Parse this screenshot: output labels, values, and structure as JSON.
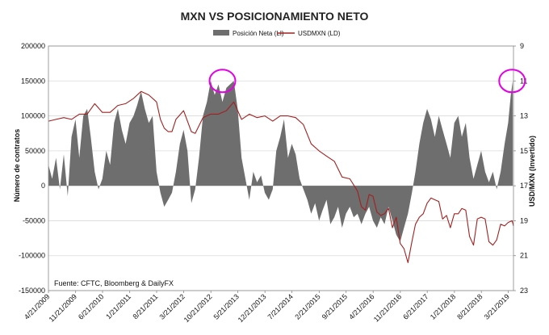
{
  "chart_data": {
    "type": "area",
    "title": "MXN VS POSICIONAMIENTO NETO",
    "source": "Fuente: CFTC, Bloomberg & DailyFX",
    "y_left": {
      "label": "Número de contratos",
      "range": [
        -150000,
        200000
      ],
      "ticks": [
        "200000",
        "150000",
        "100000",
        "50000",
        "0",
        "-50000",
        "-100000",
        "-150000"
      ]
    },
    "y_right": {
      "label": "USD/MXN (Invertido)",
      "range": [
        9,
        23
      ],
      "inverted": true,
      "ticks": [
        "9",
        "11",
        "13",
        "15",
        "17",
        "19",
        "21",
        "23"
      ]
    },
    "x_range": [
      "2009-04-21",
      "2019-05-01"
    ],
    "x_ticks": [
      {
        "date": "2009-04-21",
        "label": "4/21/2009"
      },
      {
        "date": "2009-11-21",
        "label": "11/21/2009"
      },
      {
        "date": "2010-06-21",
        "label": "6/21/2010"
      },
      {
        "date": "2011-01-21",
        "label": "1/21/2011"
      },
      {
        "date": "2011-08-21",
        "label": "8/21/2011"
      },
      {
        "date": "2012-03-21",
        "label": "3/21/2012"
      },
      {
        "date": "2012-10-21",
        "label": "10/21/2012"
      },
      {
        "date": "2013-05-21",
        "label": "5/21/2013"
      },
      {
        "date": "2013-12-21",
        "label": "12/21/2013"
      },
      {
        "date": "2014-07-21",
        "label": "7/21/2014"
      },
      {
        "date": "2015-02-21",
        "label": "2/21/2015"
      },
      {
        "date": "2015-09-21",
        "label": "9/21/2015"
      },
      {
        "date": "2016-04-21",
        "label": "4/21/2016"
      },
      {
        "date": "2016-11-21",
        "label": "11/21/2016"
      },
      {
        "date": "2017-06-21",
        "label": "6/21/2017"
      },
      {
        "date": "2018-01-21",
        "label": "1/21/2018"
      },
      {
        "date": "2018-08-21",
        "label": "8/21/2018"
      },
      {
        "date": "2019-03-21",
        "label": "3/21/2019"
      }
    ],
    "legend_position": "top-center",
    "grid": true,
    "series": [
      {
        "name": "Posición Neta (LI)",
        "kind": "area",
        "axis": "left",
        "color": "#6e6e6e",
        "points": [
          [
            "2009-04-21",
            30000
          ],
          [
            "2009-05-20",
            10000
          ],
          [
            "2009-06-20",
            40000
          ],
          [
            "2009-07-20",
            -5000
          ],
          [
            "2009-08-20",
            45000
          ],
          [
            "2009-09-20",
            -15000
          ],
          [
            "2009-10-20",
            70000
          ],
          [
            "2009-11-20",
            95000
          ],
          [
            "2009-12-20",
            40000
          ],
          [
            "2010-01-20",
            100000
          ],
          [
            "2010-02-20",
            110000
          ],
          [
            "2010-03-20",
            70000
          ],
          [
            "2010-04-20",
            20000
          ],
          [
            "2010-05-20",
            -5000
          ],
          [
            "2010-06-20",
            10000
          ],
          [
            "2010-07-20",
            50000
          ],
          [
            "2010-08-20",
            30000
          ],
          [
            "2010-09-20",
            90000
          ],
          [
            "2010-10-20",
            110000
          ],
          [
            "2010-11-20",
            80000
          ],
          [
            "2010-12-20",
            60000
          ],
          [
            "2011-01-20",
            90000
          ],
          [
            "2011-02-20",
            100000
          ],
          [
            "2011-03-20",
            115000
          ],
          [
            "2011-04-20",
            135000
          ],
          [
            "2011-05-20",
            110000
          ],
          [
            "2011-06-20",
            90000
          ],
          [
            "2011-07-20",
            100000
          ],
          [
            "2011-08-20",
            20000
          ],
          [
            "2011-09-20",
            -10000
          ],
          [
            "2011-10-20",
            -30000
          ],
          [
            "2011-11-20",
            -20000
          ],
          [
            "2011-12-20",
            -10000
          ],
          [
            "2012-01-20",
            20000
          ],
          [
            "2012-02-20",
            60000
          ],
          [
            "2012-03-20",
            80000
          ],
          [
            "2012-04-20",
            50000
          ],
          [
            "2012-05-20",
            -25000
          ],
          [
            "2012-06-20",
            -5000
          ],
          [
            "2012-07-20",
            40000
          ],
          [
            "2012-08-20",
            100000
          ],
          [
            "2012-09-20",
            120000
          ],
          [
            "2012-10-20",
            150000
          ],
          [
            "2012-11-20",
            130000
          ],
          [
            "2012-12-20",
            145000
          ],
          [
            "2013-01-20",
            120000
          ],
          [
            "2013-02-20",
            140000
          ],
          [
            "2013-03-20",
            145000
          ],
          [
            "2013-04-20",
            150000
          ],
          [
            "2013-05-20",
            110000
          ],
          [
            "2013-06-20",
            40000
          ],
          [
            "2013-07-20",
            10000
          ],
          [
            "2013-08-20",
            -20000
          ],
          [
            "2013-09-20",
            20000
          ],
          [
            "2013-10-20",
            5000
          ],
          [
            "2013-11-20",
            15000
          ],
          [
            "2013-12-20",
            -10000
          ],
          [
            "2014-01-20",
            -20000
          ],
          [
            "2014-02-20",
            -5000
          ],
          [
            "2014-03-20",
            50000
          ],
          [
            "2014-04-20",
            70000
          ],
          [
            "2014-05-20",
            95000
          ],
          [
            "2014-06-20",
            40000
          ],
          [
            "2014-07-20",
            60000
          ],
          [
            "2014-08-20",
            45000
          ],
          [
            "2014-09-20",
            10000
          ],
          [
            "2014-10-20",
            -5000
          ],
          [
            "2014-11-20",
            -20000
          ],
          [
            "2014-12-20",
            -40000
          ],
          [
            "2015-01-20",
            -25000
          ],
          [
            "2015-02-20",
            -50000
          ],
          [
            "2015-03-20",
            -35000
          ],
          [
            "2015-04-20",
            -20000
          ],
          [
            "2015-05-20",
            -55000
          ],
          [
            "2015-06-20",
            -45000
          ],
          [
            "2015-07-20",
            -30000
          ],
          [
            "2015-08-20",
            -60000
          ],
          [
            "2015-09-20",
            -40000
          ],
          [
            "2015-10-20",
            -30000
          ],
          [
            "2015-11-20",
            -45000
          ],
          [
            "2015-12-20",
            -40000
          ],
          [
            "2016-01-20",
            -55000
          ],
          [
            "2016-02-20",
            -40000
          ],
          [
            "2016-03-20",
            -30000
          ],
          [
            "2016-04-20",
            -50000
          ],
          [
            "2016-05-20",
            -60000
          ],
          [
            "2016-06-20",
            -45000
          ],
          [
            "2016-07-20",
            -55000
          ],
          [
            "2016-08-20",
            -30000
          ],
          [
            "2016-09-20",
            -50000
          ],
          [
            "2016-10-20",
            -70000
          ],
          [
            "2016-11-20",
            -80000
          ],
          [
            "2016-12-20",
            -60000
          ],
          [
            "2017-01-20",
            -40000
          ],
          [
            "2017-02-20",
            -10000
          ],
          [
            "2017-03-20",
            20000
          ],
          [
            "2017-04-20",
            60000
          ],
          [
            "2017-05-20",
            90000
          ],
          [
            "2017-06-20",
            110000
          ],
          [
            "2017-07-20",
            95000
          ],
          [
            "2017-08-20",
            70000
          ],
          [
            "2017-09-20",
            100000
          ],
          [
            "2017-10-20",
            80000
          ],
          [
            "2017-11-20",
            60000
          ],
          [
            "2017-12-20",
            40000
          ],
          [
            "2018-01-20",
            90000
          ],
          [
            "2018-02-20",
            100000
          ],
          [
            "2018-03-20",
            70000
          ],
          [
            "2018-04-20",
            90000
          ],
          [
            "2018-05-20",
            40000
          ],
          [
            "2018-06-20",
            10000
          ],
          [
            "2018-07-20",
            30000
          ],
          [
            "2018-08-20",
            50000
          ],
          [
            "2018-09-20",
            20000
          ],
          [
            "2018-10-20",
            5000
          ],
          [
            "2018-11-20",
            20000
          ],
          [
            "2018-12-20",
            -5000
          ],
          [
            "2019-01-20",
            20000
          ],
          [
            "2019-02-20",
            60000
          ],
          [
            "2019-03-20",
            90000
          ],
          [
            "2019-04-10",
            130000
          ],
          [
            "2019-04-25",
            150000
          ]
        ]
      },
      {
        "name": "USDMXN (LD)",
        "kind": "line",
        "axis": "right",
        "color": "#a32020",
        "points": [
          [
            "2009-04-21",
            13.3
          ],
          [
            "2009-06-20",
            13.2
          ],
          [
            "2009-08-20",
            13.1
          ],
          [
            "2009-10-20",
            13.2
          ],
          [
            "2009-12-20",
            12.9
          ],
          [
            "2010-02-20",
            12.9
          ],
          [
            "2010-04-20",
            12.3
          ],
          [
            "2010-06-20",
            12.8
          ],
          [
            "2010-08-20",
            12.8
          ],
          [
            "2010-10-20",
            12.4
          ],
          [
            "2010-12-20",
            12.3
          ],
          [
            "2011-02-20",
            12.0
          ],
          [
            "2011-04-20",
            11.6
          ],
          [
            "2011-06-20",
            11.8
          ],
          [
            "2011-08-20",
            12.2
          ],
          [
            "2011-09-20",
            13.2
          ],
          [
            "2011-10-20",
            13.7
          ],
          [
            "2011-11-20",
            13.9
          ],
          [
            "2011-12-20",
            13.9
          ],
          [
            "2012-01-20",
            13.2
          ],
          [
            "2012-03-20",
            12.7
          ],
          [
            "2012-05-20",
            13.9
          ],
          [
            "2012-06-20",
            14.0
          ],
          [
            "2012-08-20",
            13.1
          ],
          [
            "2012-10-20",
            12.9
          ],
          [
            "2012-12-20",
            12.9
          ],
          [
            "2013-02-20",
            12.7
          ],
          [
            "2013-04-20",
            12.2
          ],
          [
            "2013-05-20",
            12.7
          ],
          [
            "2013-06-20",
            13.2
          ],
          [
            "2013-08-20",
            12.9
          ],
          [
            "2013-10-20",
            13.1
          ],
          [
            "2013-12-20",
            13.0
          ],
          [
            "2014-02-20",
            13.3
          ],
          [
            "2014-04-20",
            13.0
          ],
          [
            "2014-06-20",
            13.0
          ],
          [
            "2014-08-20",
            13.1
          ],
          [
            "2014-10-20",
            13.5
          ],
          [
            "2014-12-20",
            14.6
          ],
          [
            "2015-02-20",
            15.0
          ],
          [
            "2015-04-20",
            15.3
          ],
          [
            "2015-06-20",
            15.6
          ],
          [
            "2015-08-20",
            16.5
          ],
          [
            "2015-10-20",
            16.6
          ],
          [
            "2015-12-20",
            17.3
          ],
          [
            "2016-01-20",
            18.2
          ],
          [
            "2016-02-20",
            18.4
          ],
          [
            "2016-03-20",
            17.5
          ],
          [
            "2016-04-20",
            17.6
          ],
          [
            "2016-05-20",
            18.5
          ],
          [
            "2016-06-20",
            18.7
          ],
          [
            "2016-07-20",
            18.6
          ],
          [
            "2016-08-20",
            18.3
          ],
          [
            "2016-09-20",
            19.4
          ],
          [
            "2016-10-20",
            18.8
          ],
          [
            "2016-11-20",
            20.3
          ],
          [
            "2016-12-20",
            20.6
          ],
          [
            "2017-01-20",
            21.4
          ],
          [
            "2017-02-20",
            20.2
          ],
          [
            "2017-03-20",
            19.2
          ],
          [
            "2017-04-20",
            18.8
          ],
          [
            "2017-05-20",
            18.6
          ],
          [
            "2017-06-20",
            18.0
          ],
          [
            "2017-07-20",
            17.7
          ],
          [
            "2017-08-20",
            17.8
          ],
          [
            "2017-09-20",
            17.9
          ],
          [
            "2017-10-20",
            18.9
          ],
          [
            "2017-11-20",
            18.7
          ],
          [
            "2017-12-20",
            19.4
          ],
          [
            "2018-01-20",
            18.6
          ],
          [
            "2018-02-20",
            18.6
          ],
          [
            "2018-03-20",
            18.3
          ],
          [
            "2018-04-20",
            18.4
          ],
          [
            "2018-05-20",
            19.9
          ],
          [
            "2018-06-20",
            20.4
          ],
          [
            "2018-07-20",
            18.9
          ],
          [
            "2018-08-20",
            18.8
          ],
          [
            "2018-09-20",
            18.9
          ],
          [
            "2018-10-20",
            20.2
          ],
          [
            "2018-11-20",
            20.4
          ],
          [
            "2018-12-20",
            20.1
          ],
          [
            "2019-01-20",
            19.2
          ],
          [
            "2019-02-20",
            19.3
          ],
          [
            "2019-03-20",
            19.1
          ],
          [
            "2019-04-20",
            19.0
          ],
          [
            "2019-05-01",
            19.3
          ]
        ]
      }
    ],
    "annotations": [
      {
        "kind": "circle",
        "date": "2013-01-20",
        "value": 150000,
        "color": "#e400e4"
      },
      {
        "kind": "circle",
        "date": "2019-04-20",
        "value": 150000,
        "color": "#e400e4"
      }
    ]
  }
}
